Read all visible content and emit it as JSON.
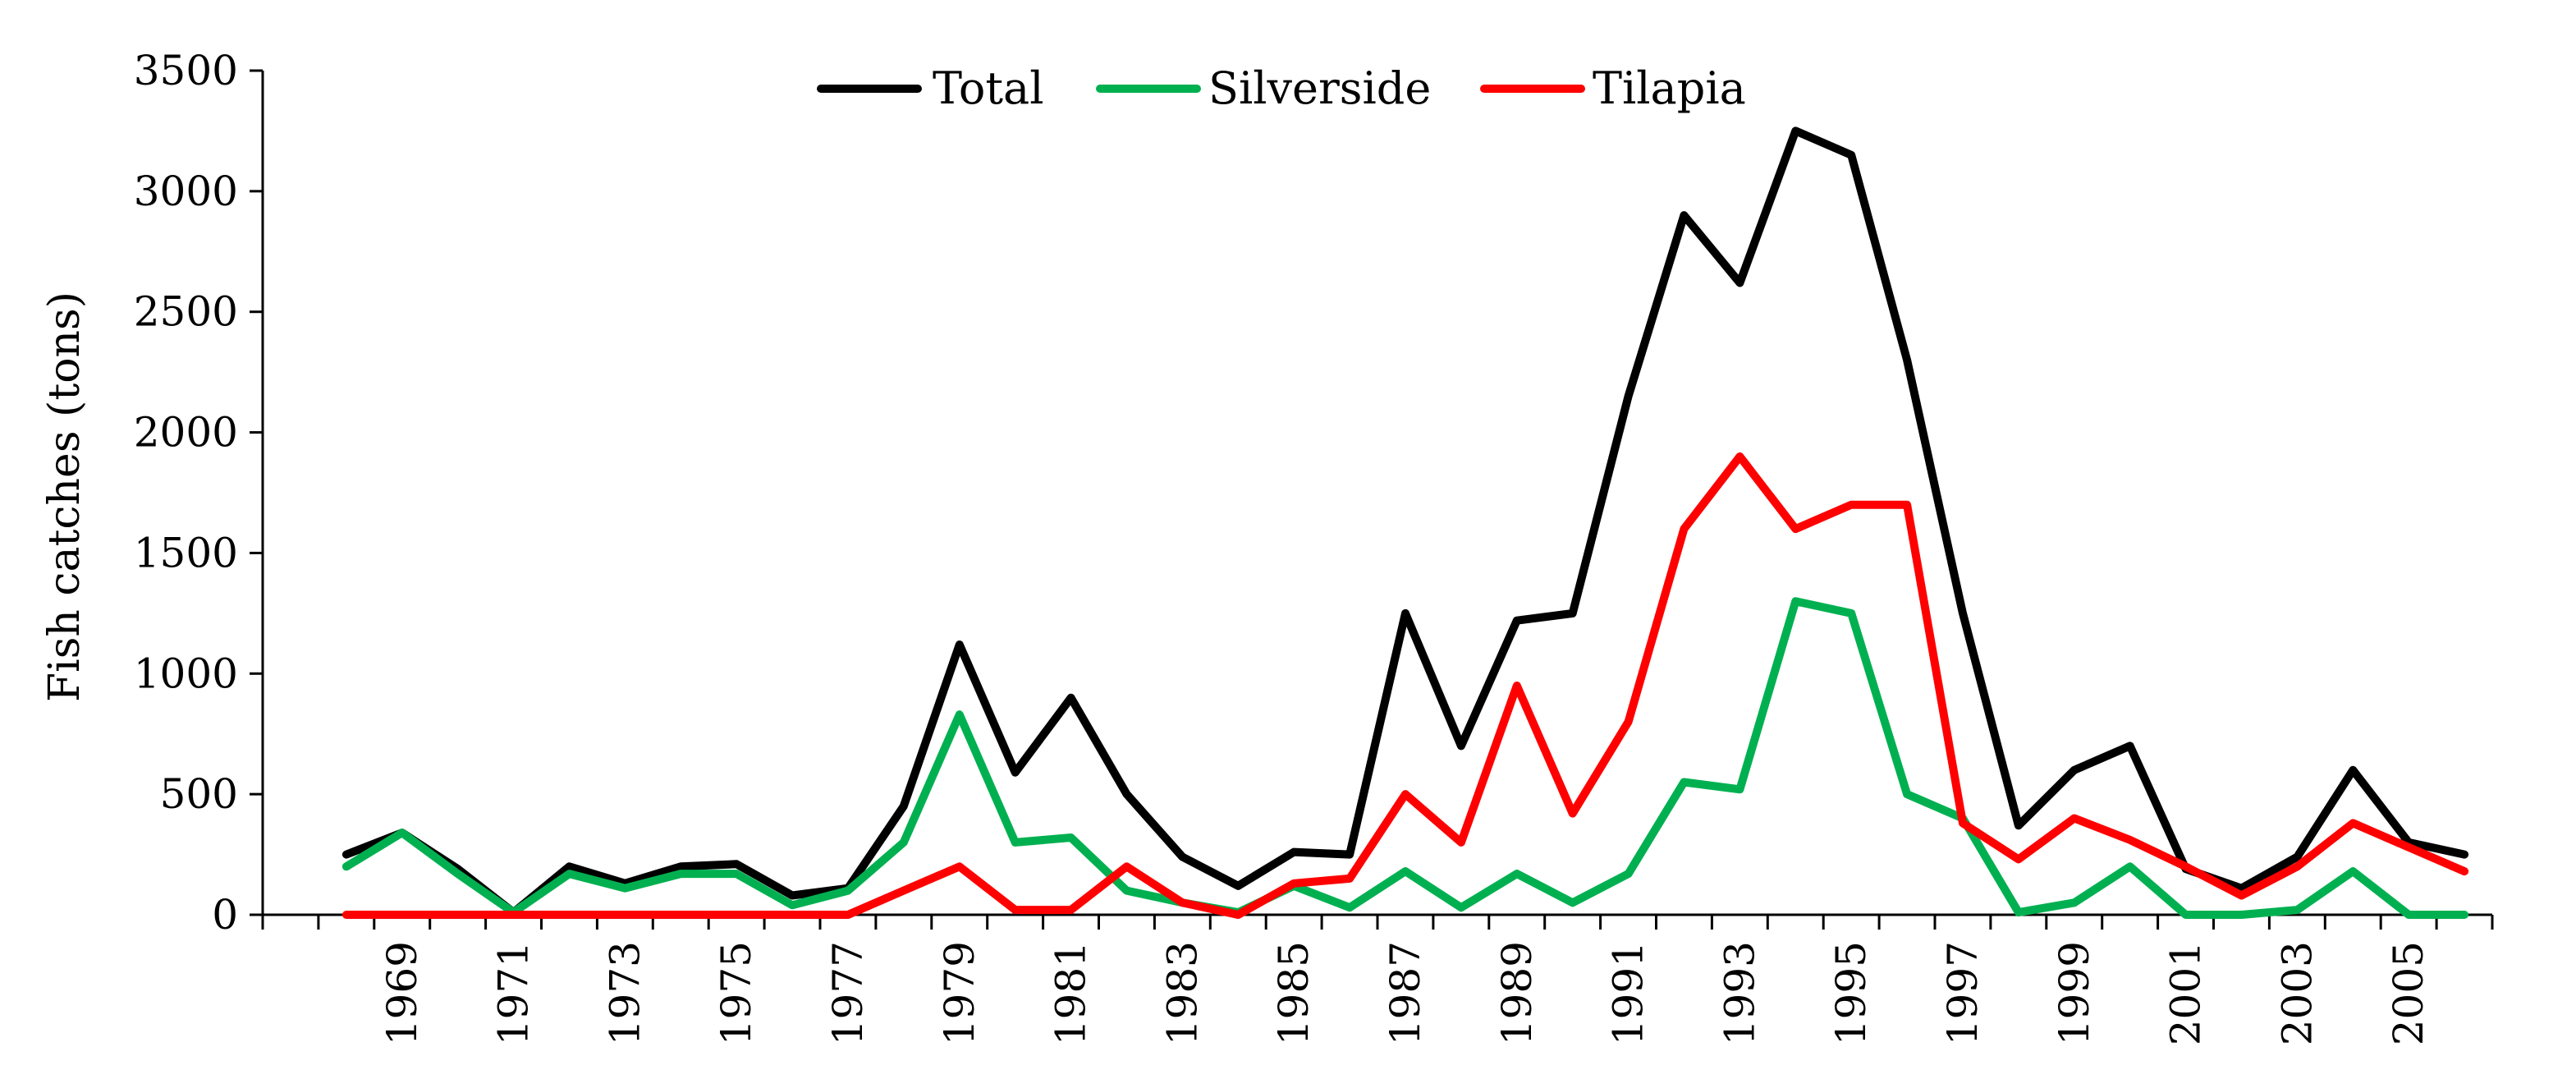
{
  "colors": {
    "total": "#000000",
    "silverside": "#00b050",
    "tilapia": "#ff0000",
    "axis": "#000000",
    "background": "#ffffff"
  },
  "chart_data": {
    "type": "line",
    "title": "",
    "xlabel": "",
    "ylabel": "Fish catches (tons)",
    "ylim": [
      0,
      3500
    ],
    "yticks": [
      "0",
      "500",
      "1000",
      "1500",
      "2000",
      "2500",
      "3000",
      "3500"
    ],
    "grid": false,
    "legend_position": "top-center",
    "x": [
      1968,
      1969,
      1970,
      1971,
      1972,
      1973,
      1974,
      1975,
      1976,
      1977,
      1978,
      1979,
      1980,
      1981,
      1982,
      1983,
      1984,
      1985,
      1986,
      1987,
      1988,
      1989,
      1990,
      1991,
      1992,
      1993,
      1994,
      1995,
      1996,
      1997,
      1998,
      1999,
      2000,
      2001,
      2002,
      2003,
      2004,
      2005,
      2006
    ],
    "xtick_labels": [
      "1969",
      "1971",
      "1973",
      "1975",
      "1977",
      "1979",
      "1981",
      "1983",
      "1985",
      "1987",
      "1989",
      "1991",
      "1993",
      "1995",
      "1997",
      "1999",
      "2001",
      "2003",
      "2005"
    ],
    "series": [
      {
        "name": "Total",
        "values": [
          250,
          340,
          190,
          10,
          200,
          130,
          200,
          210,
          80,
          110,
          450,
          1120,
          590,
          900,
          500,
          240,
          120,
          260,
          250,
          1250,
          700,
          1220,
          1250,
          2150,
          2900,
          2620,
          3250,
          3150,
          2300,
          1250,
          370,
          600,
          700,
          190,
          110,
          240,
          600,
          300,
          250
        ]
      },
      {
        "name": "Silverside",
        "values": [
          200,
          340,
          170,
          10,
          170,
          110,
          170,
          170,
          40,
          100,
          300,
          830,
          300,
          320,
          100,
          50,
          10,
          120,
          30,
          180,
          30,
          170,
          50,
          170,
          550,
          520,
          1300,
          1250,
          500,
          400,
          10,
          50,
          200,
          0,
          0,
          20,
          180,
          0,
          0
        ]
      },
      {
        "name": "Tilapia",
        "values": [
          0,
          0,
          0,
          0,
          0,
          0,
          0,
          0,
          0,
          0,
          100,
          200,
          20,
          20,
          200,
          50,
          0,
          130,
          150,
          500,
          300,
          950,
          420,
          800,
          1600,
          1900,
          1600,
          1700,
          1700,
          380,
          230,
          400,
          310,
          200,
          80,
          200,
          380,
          280,
          180
        ]
      }
    ]
  }
}
